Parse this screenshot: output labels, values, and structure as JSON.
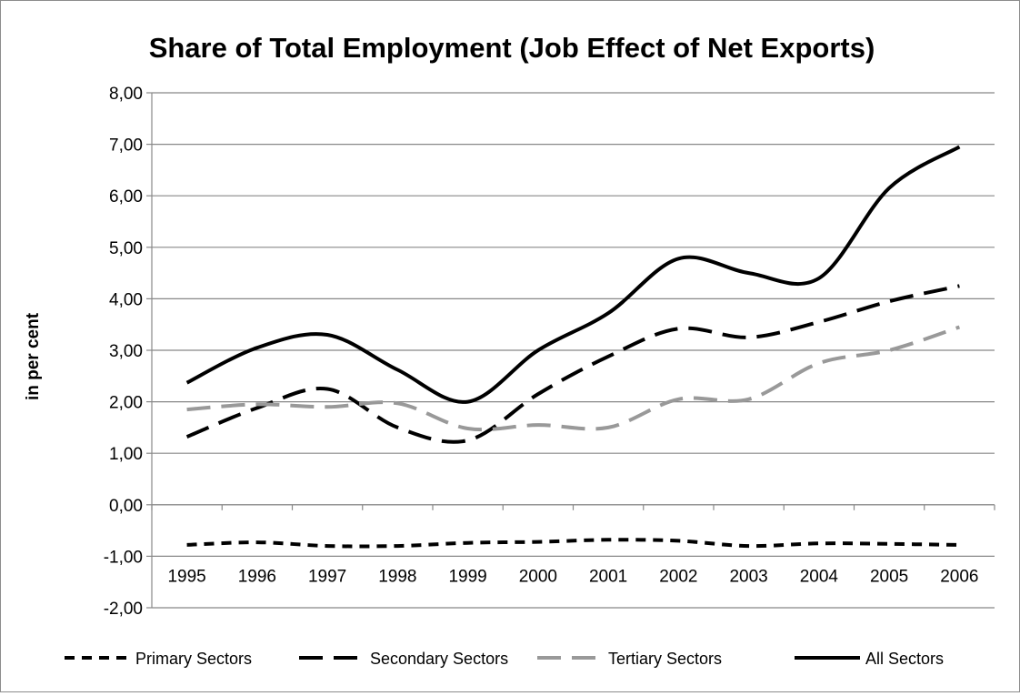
{
  "chart_data": {
    "type": "line",
    "title": "Share of Total Employment (Job Effect of Net Exports)",
    "xlabel": "",
    "ylabel": "in per cent",
    "x": [
      "1995",
      "1996",
      "1997",
      "1998",
      "1999",
      "2000",
      "2001",
      "2002",
      "2003",
      "2004",
      "2005",
      "2006"
    ],
    "ylim": [
      -2,
      8
    ],
    "yticks": [
      "-2,00",
      "-1,00",
      "0,00",
      "1,00",
      "2,00",
      "3,00",
      "4,00",
      "5,00",
      "6,00",
      "7,00",
      "8,00"
    ],
    "grid": true,
    "legend_position": "bottom",
    "series": [
      {
        "name": "Primary Sectors",
        "color": "#000000",
        "style": "short-dash",
        "values": [
          -0.78,
          -0.73,
          -0.8,
          -0.8,
          -0.74,
          -0.72,
          -0.68,
          -0.7,
          -0.8,
          -0.75,
          -0.76,
          -0.78
        ]
      },
      {
        "name": "Secondary Sectors",
        "color": "#000000",
        "style": "long-dash",
        "values": [
          1.32,
          1.88,
          2.25,
          1.5,
          1.25,
          2.15,
          2.88,
          3.42,
          3.25,
          3.55,
          3.95,
          4.25
        ]
      },
      {
        "name": "Tertiary Sectors",
        "color": "#999999",
        "style": "long-dash",
        "values": [
          1.85,
          1.95,
          1.9,
          1.97,
          1.48,
          1.55,
          1.5,
          2.05,
          2.05,
          2.75,
          3.0,
          3.45
        ]
      },
      {
        "name": "All Sectors",
        "color": "#000000",
        "style": "solid",
        "values": [
          2.37,
          3.05,
          3.3,
          2.62,
          2.0,
          3.0,
          3.72,
          4.78,
          4.5,
          4.4,
          6.15,
          6.95
        ]
      }
    ]
  }
}
